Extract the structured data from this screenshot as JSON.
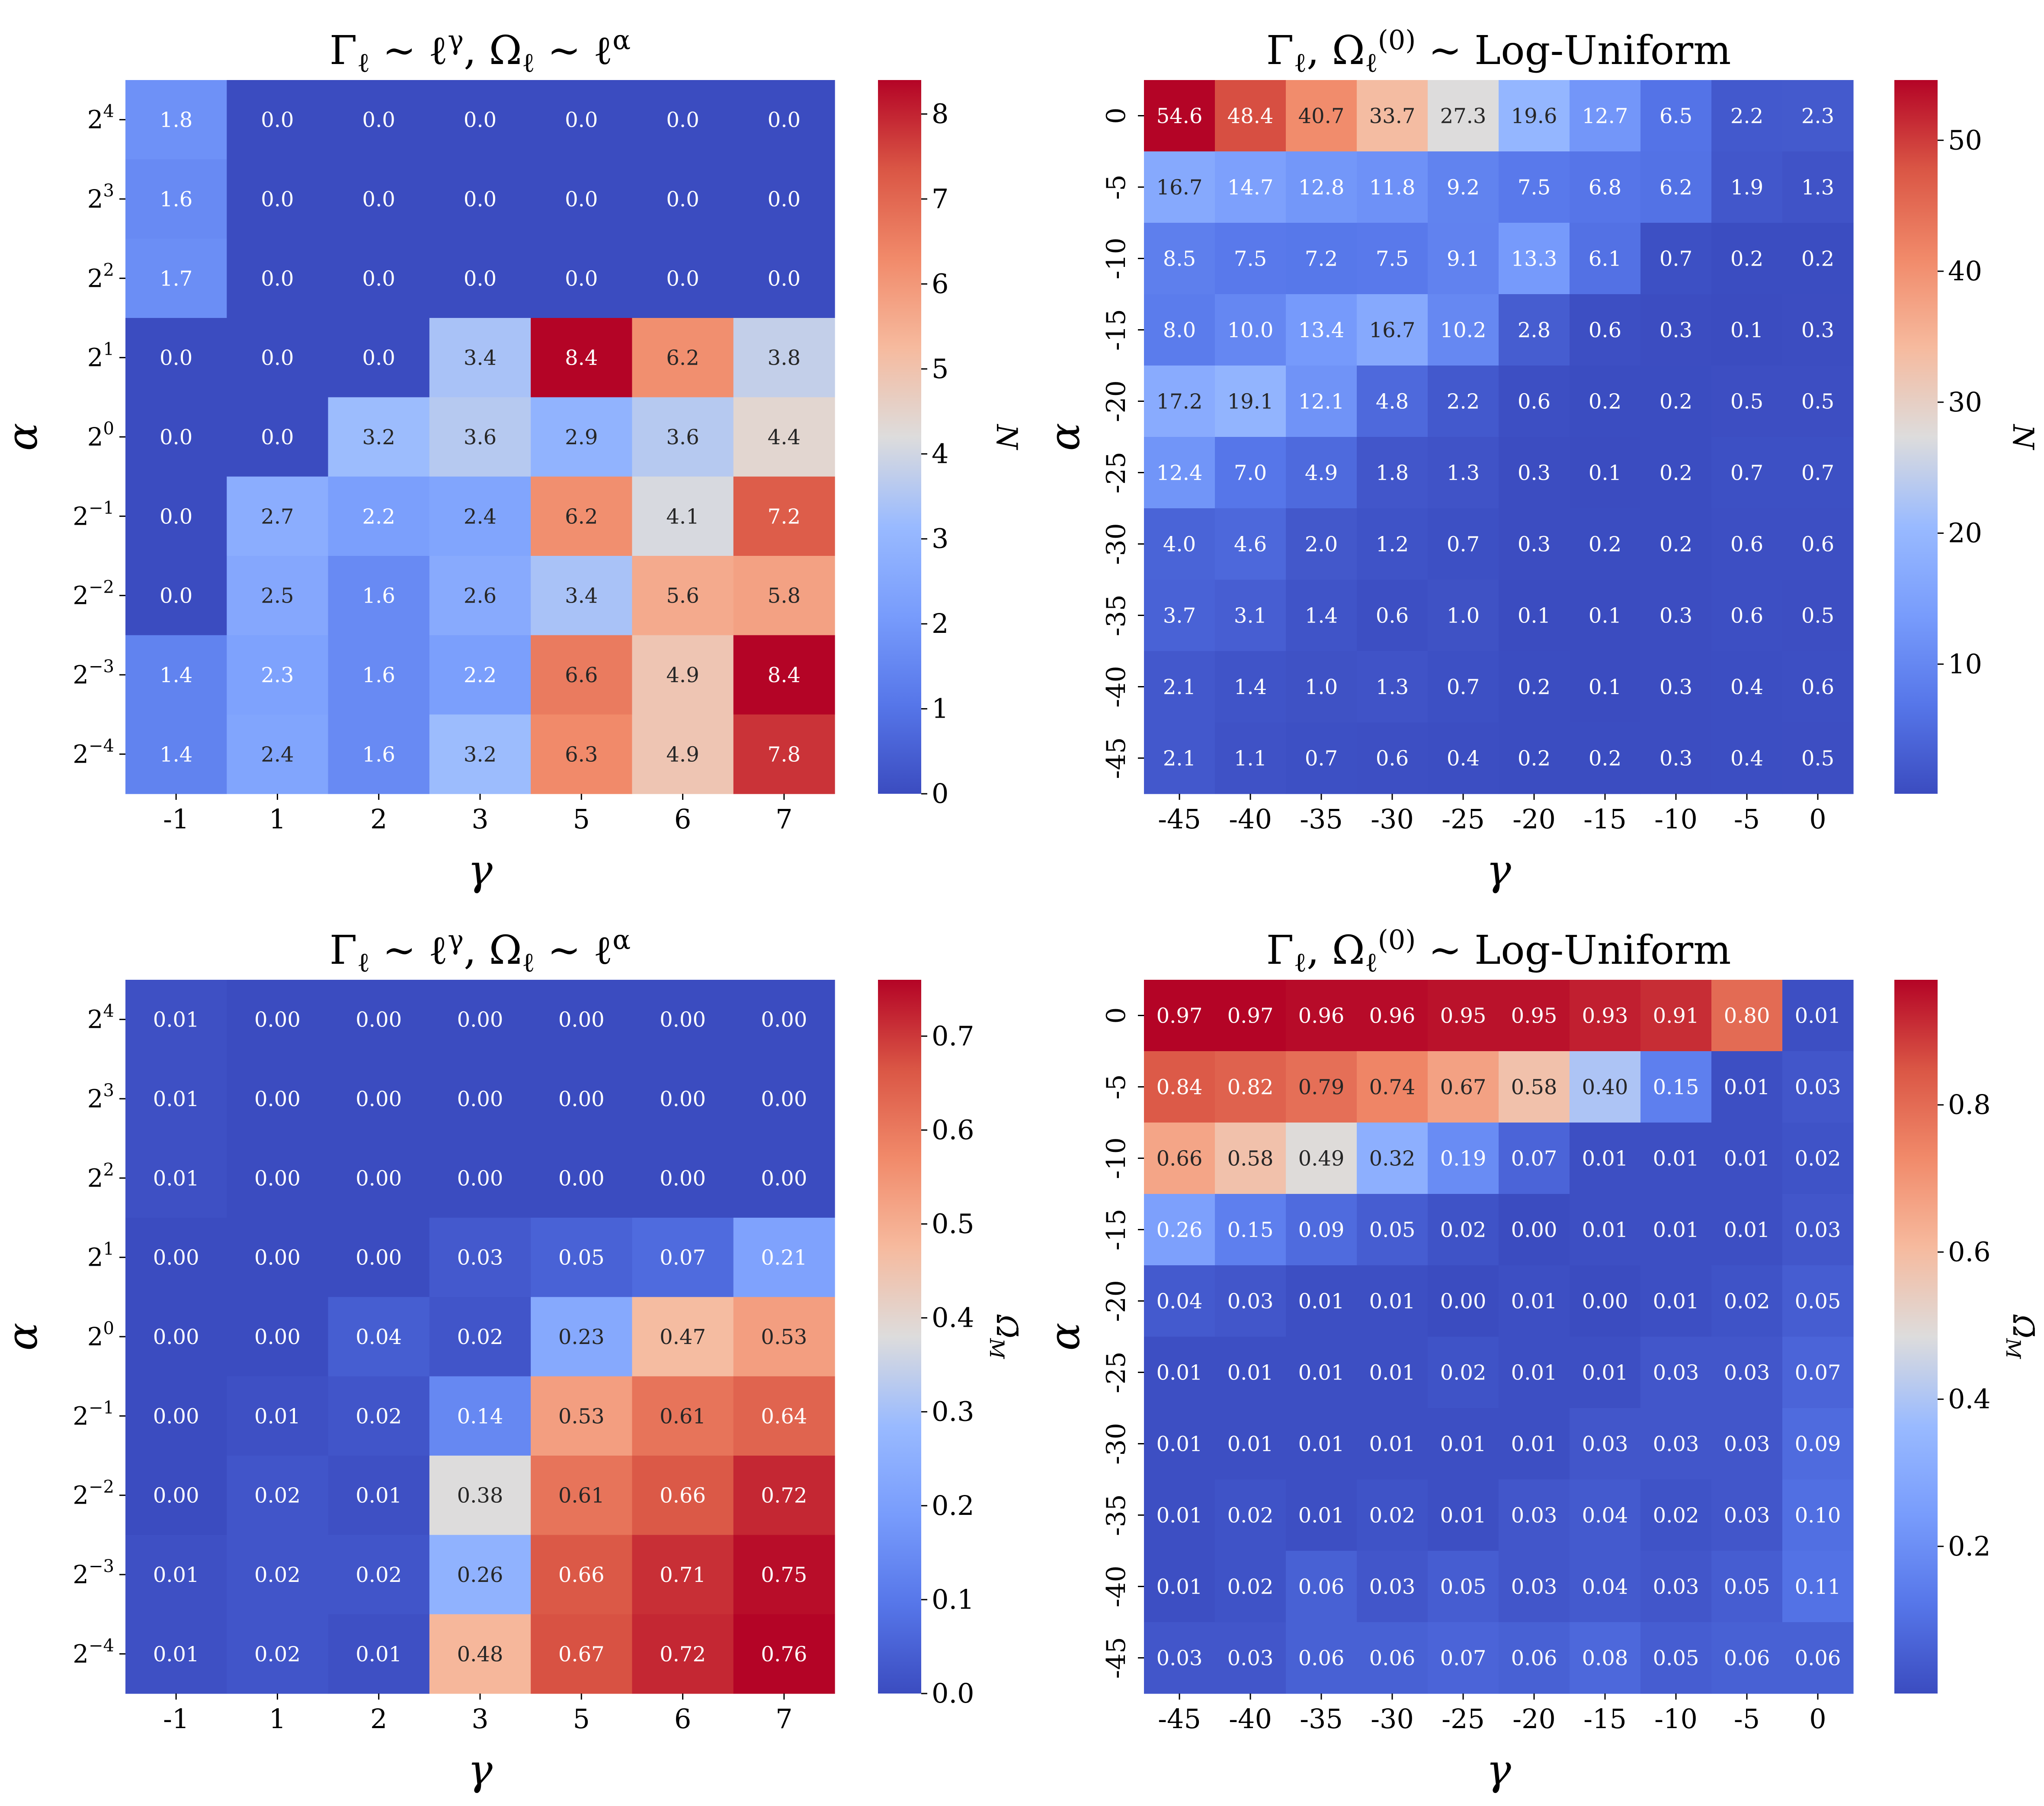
{
  "chart_data": [
    {
      "id": "tl",
      "type": "heatmap",
      "title": "Γ_ℓ ∼ ℓ^γ,  Ω_ℓ ∼ ℓ^α",
      "xlabel": "γ",
      "ylabel": "α",
      "x_categories": [
        "-1",
        "1",
        "2",
        "3",
        "5",
        "6",
        "7"
      ],
      "y_categories": [
        "2^4",
        "2^3",
        "2^2",
        "2^1",
        "2^0",
        "2^-1",
        "2^-2",
        "2^-3",
        "2^-4"
      ],
      "values": [
        [
          1.8,
          0.0,
          0.0,
          0.0,
          0.0,
          0.0,
          0.0
        ],
        [
          1.6,
          0.0,
          0.0,
          0.0,
          0.0,
          0.0,
          0.0
        ],
        [
          1.7,
          0.0,
          0.0,
          0.0,
          0.0,
          0.0,
          0.0
        ],
        [
          0.0,
          0.0,
          0.0,
          3.4,
          8.4,
          6.2,
          3.8
        ],
        [
          0.0,
          0.0,
          3.2,
          3.6,
          2.9,
          3.6,
          4.4
        ],
        [
          0.0,
          2.7,
          2.2,
          2.4,
          6.2,
          4.1,
          7.2
        ],
        [
          0.0,
          2.5,
          1.6,
          2.6,
          3.4,
          5.6,
          5.8
        ],
        [
          1.4,
          2.3,
          1.6,
          2.2,
          6.6,
          4.9,
          8.4
        ],
        [
          1.4,
          2.4,
          1.6,
          3.2,
          6.3,
          4.9,
          7.8
        ]
      ],
      "decimals": 1,
      "colorbar": {
        "label": "N",
        "vmin": 0,
        "vmax": 8.4,
        "ticks": [
          "0",
          "1",
          "2",
          "3",
          "4",
          "5",
          "6",
          "7",
          "8"
        ],
        "tick_values": [
          0,
          1,
          2,
          3,
          4,
          5,
          6,
          7,
          8
        ]
      },
      "colormap": "coolwarm"
    },
    {
      "id": "tr",
      "type": "heatmap",
      "title": "Γ_ℓ, Ω_ℓ^(0) ∼ Log-Uniform",
      "xlabel": "γ",
      "ylabel": "α",
      "x_categories": [
        "-45",
        "-40",
        "-35",
        "-30",
        "-25",
        "-20",
        "-15",
        "-10",
        "-5",
        "0"
      ],
      "y_categories": [
        "0",
        "-5",
        "-10",
        "-15",
        "-20",
        "-25",
        "-30",
        "-35",
        "-40",
        "-45"
      ],
      "values": [
        [
          54.6,
          48.4,
          40.7,
          33.7,
          27.3,
          19.6,
          12.7,
          6.5,
          2.2,
          2.3
        ],
        [
          16.7,
          14.7,
          12.8,
          11.8,
          9.2,
          7.5,
          6.8,
          6.2,
          1.9,
          1.3
        ],
        [
          8.5,
          7.5,
          7.2,
          7.5,
          9.1,
          13.3,
          6.1,
          0.7,
          0.2,
          0.2
        ],
        [
          8.0,
          10.0,
          13.4,
          16.7,
          10.2,
          2.8,
          0.6,
          0.3,
          0.1,
          0.3
        ],
        [
          17.2,
          19.1,
          12.1,
          4.8,
          2.2,
          0.6,
          0.2,
          0.2,
          0.5,
          0.5
        ],
        [
          12.4,
          7.0,
          4.9,
          1.8,
          1.3,
          0.3,
          0.1,
          0.2,
          0.7,
          0.7
        ],
        [
          4.0,
          4.6,
          2.0,
          1.2,
          0.7,
          0.3,
          0.2,
          0.2,
          0.6,
          0.6
        ],
        [
          3.7,
          3.1,
          1.4,
          0.6,
          1.0,
          0.1,
          0.1,
          0.3,
          0.6,
          0.5
        ],
        [
          2.1,
          1.4,
          1.0,
          1.3,
          0.7,
          0.2,
          0.1,
          0.3,
          0.4,
          0.6
        ],
        [
          2.1,
          1.1,
          0.7,
          0.6,
          0.4,
          0.2,
          0.2,
          0.3,
          0.4,
          0.5
        ]
      ],
      "decimals": 1,
      "colorbar": {
        "label": "N",
        "vmin": 0.1,
        "vmax": 54.6,
        "ticks": [
          "10",
          "20",
          "30",
          "40",
          "50"
        ],
        "tick_values": [
          10,
          20,
          30,
          40,
          50
        ]
      },
      "colormap": "coolwarm"
    },
    {
      "id": "bl",
      "type": "heatmap",
      "title": "Γ_ℓ ∼ ℓ^γ,  Ω_ℓ ∼ ℓ^α",
      "xlabel": "γ",
      "ylabel": "α",
      "x_categories": [
        "-1",
        "1",
        "2",
        "3",
        "5",
        "6",
        "7"
      ],
      "y_categories": [
        "2^4",
        "2^3",
        "2^2",
        "2^1",
        "2^0",
        "2^-1",
        "2^-2",
        "2^-3",
        "2^-4"
      ],
      "values": [
        [
          0.01,
          0.0,
          0.0,
          0.0,
          0.0,
          0.0,
          0.0
        ],
        [
          0.01,
          0.0,
          0.0,
          0.0,
          0.0,
          0.0,
          0.0
        ],
        [
          0.01,
          0.0,
          0.0,
          0.0,
          0.0,
          0.0,
          0.0
        ],
        [
          0.0,
          0.0,
          0.0,
          0.03,
          0.05,
          0.07,
          0.21
        ],
        [
          0.0,
          0.0,
          0.04,
          0.02,
          0.23,
          0.47,
          0.53
        ],
        [
          0.0,
          0.01,
          0.02,
          0.14,
          0.53,
          0.61,
          0.64
        ],
        [
          0.0,
          0.02,
          0.01,
          0.38,
          0.61,
          0.66,
          0.72
        ],
        [
          0.01,
          0.02,
          0.02,
          0.26,
          0.66,
          0.71,
          0.75
        ],
        [
          0.01,
          0.02,
          0.01,
          0.48,
          0.67,
          0.72,
          0.76
        ]
      ],
      "decimals": 2,
      "colorbar": {
        "label": "Ω̄_M",
        "vmin": 0,
        "vmax": 0.76,
        "ticks": [
          "0.0",
          "0.1",
          "0.2",
          "0.3",
          "0.4",
          "0.5",
          "0.6",
          "0.7"
        ],
        "tick_values": [
          0,
          0.1,
          0.2,
          0.3,
          0.4,
          0.5,
          0.6,
          0.7
        ]
      },
      "colormap": "coolwarm"
    },
    {
      "id": "br",
      "type": "heatmap",
      "title": "Γ_ℓ, Ω_ℓ^(0) ∼ Log-Uniform",
      "xlabel": "γ",
      "ylabel": "α",
      "x_categories": [
        "-45",
        "-40",
        "-35",
        "-30",
        "-25",
        "-20",
        "-15",
        "-10",
        "-5",
        "0"
      ],
      "y_categories": [
        "0",
        "-5",
        "-10",
        "-15",
        "-20",
        "-25",
        "-30",
        "-35",
        "-40",
        "-45"
      ],
      "values": [
        [
          0.97,
          0.97,
          0.96,
          0.96,
          0.95,
          0.95,
          0.93,
          0.91,
          0.8,
          0.01
        ],
        [
          0.84,
          0.82,
          0.79,
          0.74,
          0.67,
          0.58,
          0.4,
          0.15,
          0.01,
          0.03
        ],
        [
          0.66,
          0.58,
          0.49,
          0.32,
          0.19,
          0.07,
          0.01,
          0.01,
          0.01,
          0.02
        ],
        [
          0.26,
          0.15,
          0.09,
          0.05,
          0.02,
          0.0,
          0.01,
          0.01,
          0.01,
          0.03
        ],
        [
          0.04,
          0.03,
          0.01,
          0.01,
          0.0,
          0.01,
          0.0,
          0.01,
          0.02,
          0.05
        ],
        [
          0.01,
          0.01,
          0.01,
          0.01,
          0.02,
          0.01,
          0.01,
          0.03,
          0.03,
          0.07
        ],
        [
          0.01,
          0.01,
          0.01,
          0.01,
          0.01,
          0.01,
          0.03,
          0.03,
          0.03,
          0.09
        ],
        [
          0.01,
          0.02,
          0.01,
          0.02,
          0.01,
          0.03,
          0.04,
          0.02,
          0.03,
          0.1
        ],
        [
          0.01,
          0.02,
          0.06,
          0.03,
          0.05,
          0.03,
          0.04,
          0.03,
          0.05,
          0.11
        ],
        [
          0.03,
          0.03,
          0.06,
          0.06,
          0.07,
          0.06,
          0.08,
          0.05,
          0.06,
          0.06
        ]
      ],
      "decimals": 2,
      "colorbar": {
        "label": "Ω̄_M",
        "vmin": 0.0,
        "vmax": 0.97,
        "ticks": [
          "0.2",
          "0.4",
          "0.6",
          "0.8"
        ],
        "tick_values": [
          0.2,
          0.4,
          0.6,
          0.8
        ]
      },
      "colormap": "coolwarm"
    }
  ]
}
